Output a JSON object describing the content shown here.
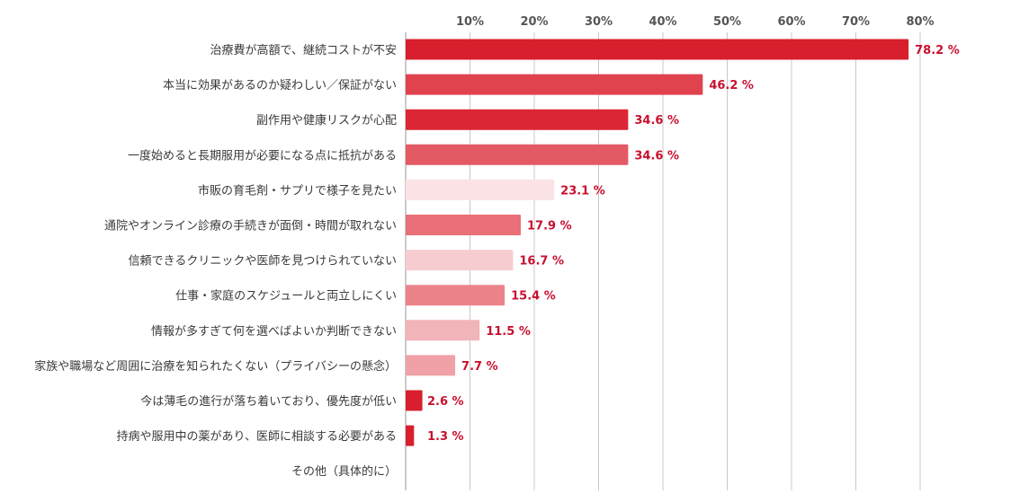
{
  "chart_data": {
    "type": "bar",
    "orientation": "horizontal",
    "title": "",
    "xlabel": "",
    "ylabel": "",
    "xlim": [
      0,
      85
    ],
    "grid": true,
    "legend": "none",
    "value_suffix": " %",
    "tick_values": [
      10,
      20,
      30,
      40,
      50,
      60,
      70,
      80
    ],
    "tick_labels": [
      "10%",
      "20%",
      "30%",
      "40%",
      "50%",
      "60%",
      "70%",
      "80%"
    ],
    "categories": [
      "治療費が高額で、継続コストが不安",
      "本当に効果があるのか疑わしい／保証がない",
      "副作用や健康リスクが心配",
      "一度始めると長期服用が必要になる点に抵抗がある",
      "市販の育毛剤・サプリで様子を見たい",
      "通院やオンライン診療の手続きが面倒・時間が取れない",
      "信頼できるクリニックや医師を見つけられていない",
      "仕事・家庭のスケジュールと両立しにくい",
      "情報が多すぎて何を選べばよいか判断できない",
      "家族や職場など周囲に治療を知られたくない（プライバシーの懸念）",
      "今は薄毛の進行が落ち着いており、優先度が低い",
      "持病や服用中の薬があり、医師に相談する必要がある",
      "その他（具体的に）"
    ],
    "values": [
      78.2,
      46.2,
      34.6,
      34.6,
      23.1,
      17.9,
      16.7,
      15.4,
      11.5,
      7.7,
      2.6,
      1.3,
      0
    ],
    "value_labels": [
      "78.2 %",
      "46.2 %",
      "34.6 %",
      "34.6 %",
      "23.1 %",
      "17.9 %",
      "16.7 %",
      "15.4 %",
      "11.5 %",
      "7.7 %",
      "2.6 %",
      "1.3 %",
      ""
    ],
    "colors": [
      "#d71f2d",
      "#e0424e",
      "#dc2633",
      "#e35a64",
      "#fbe3e5",
      "#e96f78",
      "#f7ccd0",
      "#ec838b",
      "#f1b4b9",
      "#f0a1a8",
      "#d71f2d",
      "#d71f2d",
      "#d71f2d"
    ]
  }
}
